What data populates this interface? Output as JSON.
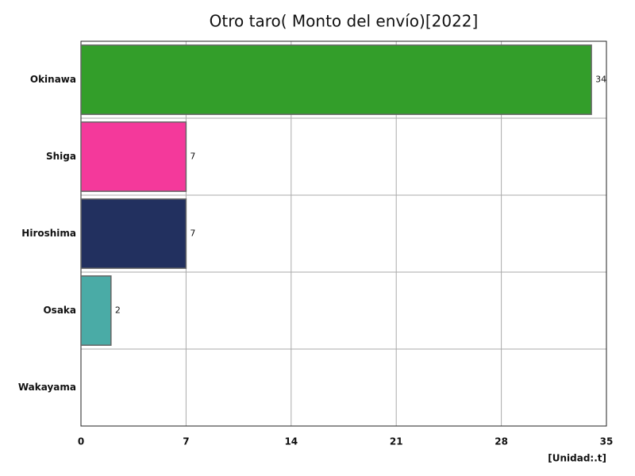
{
  "chart_data": {
    "type": "barh",
    "title": "Otro taro( Monto del envío)[2022]",
    "categories": [
      "Okinawa",
      "Shiga",
      "Hiroshima",
      "Osaka",
      "Wakayama"
    ],
    "values": [
      34,
      7,
      7,
      2,
      null
    ],
    "colors": [
      "#339e2a",
      "#f4399b",
      "#22305f",
      "#4aaba6",
      "#999999"
    ],
    "xlim": [
      0,
      35
    ],
    "xticks": [
      0,
      7,
      14,
      21,
      28,
      35
    ],
    "grid": true,
    "unit_label": "[Unidad:.t]"
  }
}
